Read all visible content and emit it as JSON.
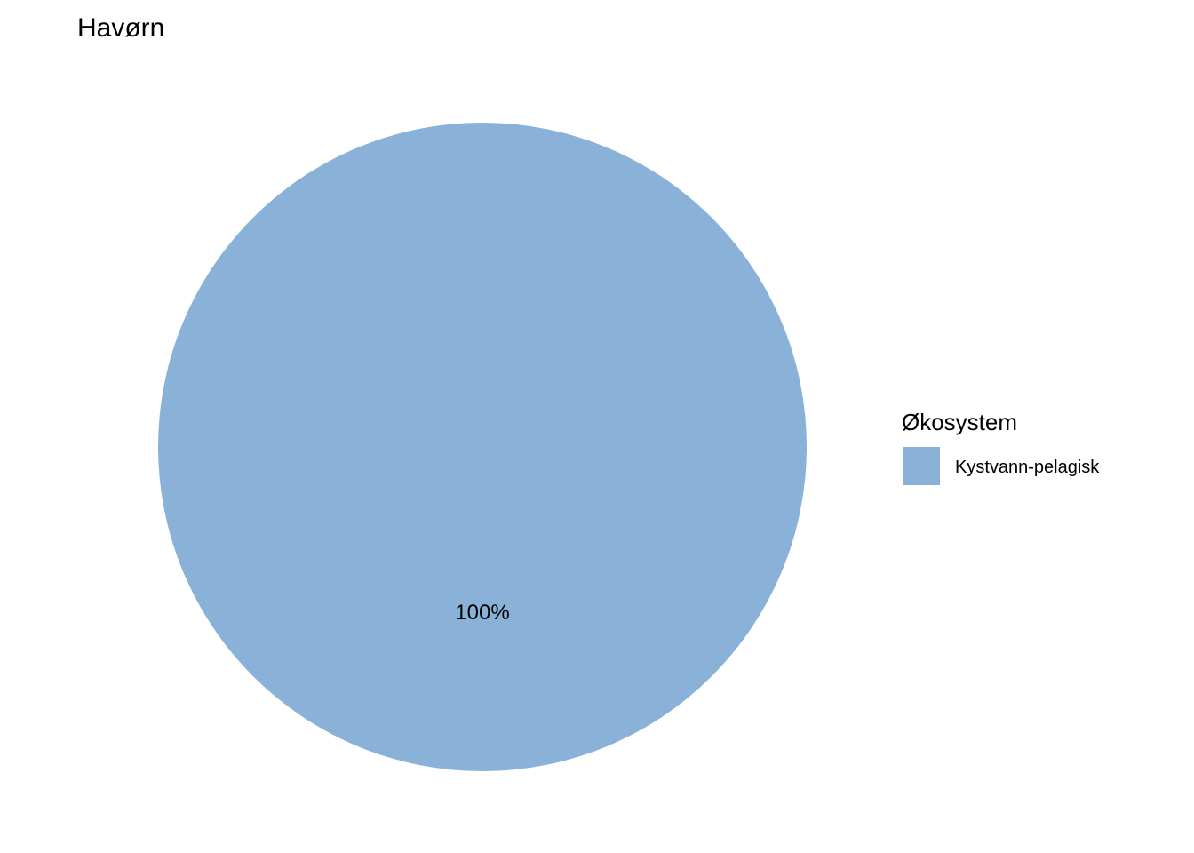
{
  "chart_data": {
    "type": "pie",
    "title": "Havørn",
    "categories": [
      "Kystvann-pelagisk"
    ],
    "values": [
      100
    ],
    "labels": [
      "100%"
    ],
    "colors": [
      "#8ab2d9"
    ],
    "legend": {
      "title": "Økosystem",
      "position": "right"
    }
  }
}
